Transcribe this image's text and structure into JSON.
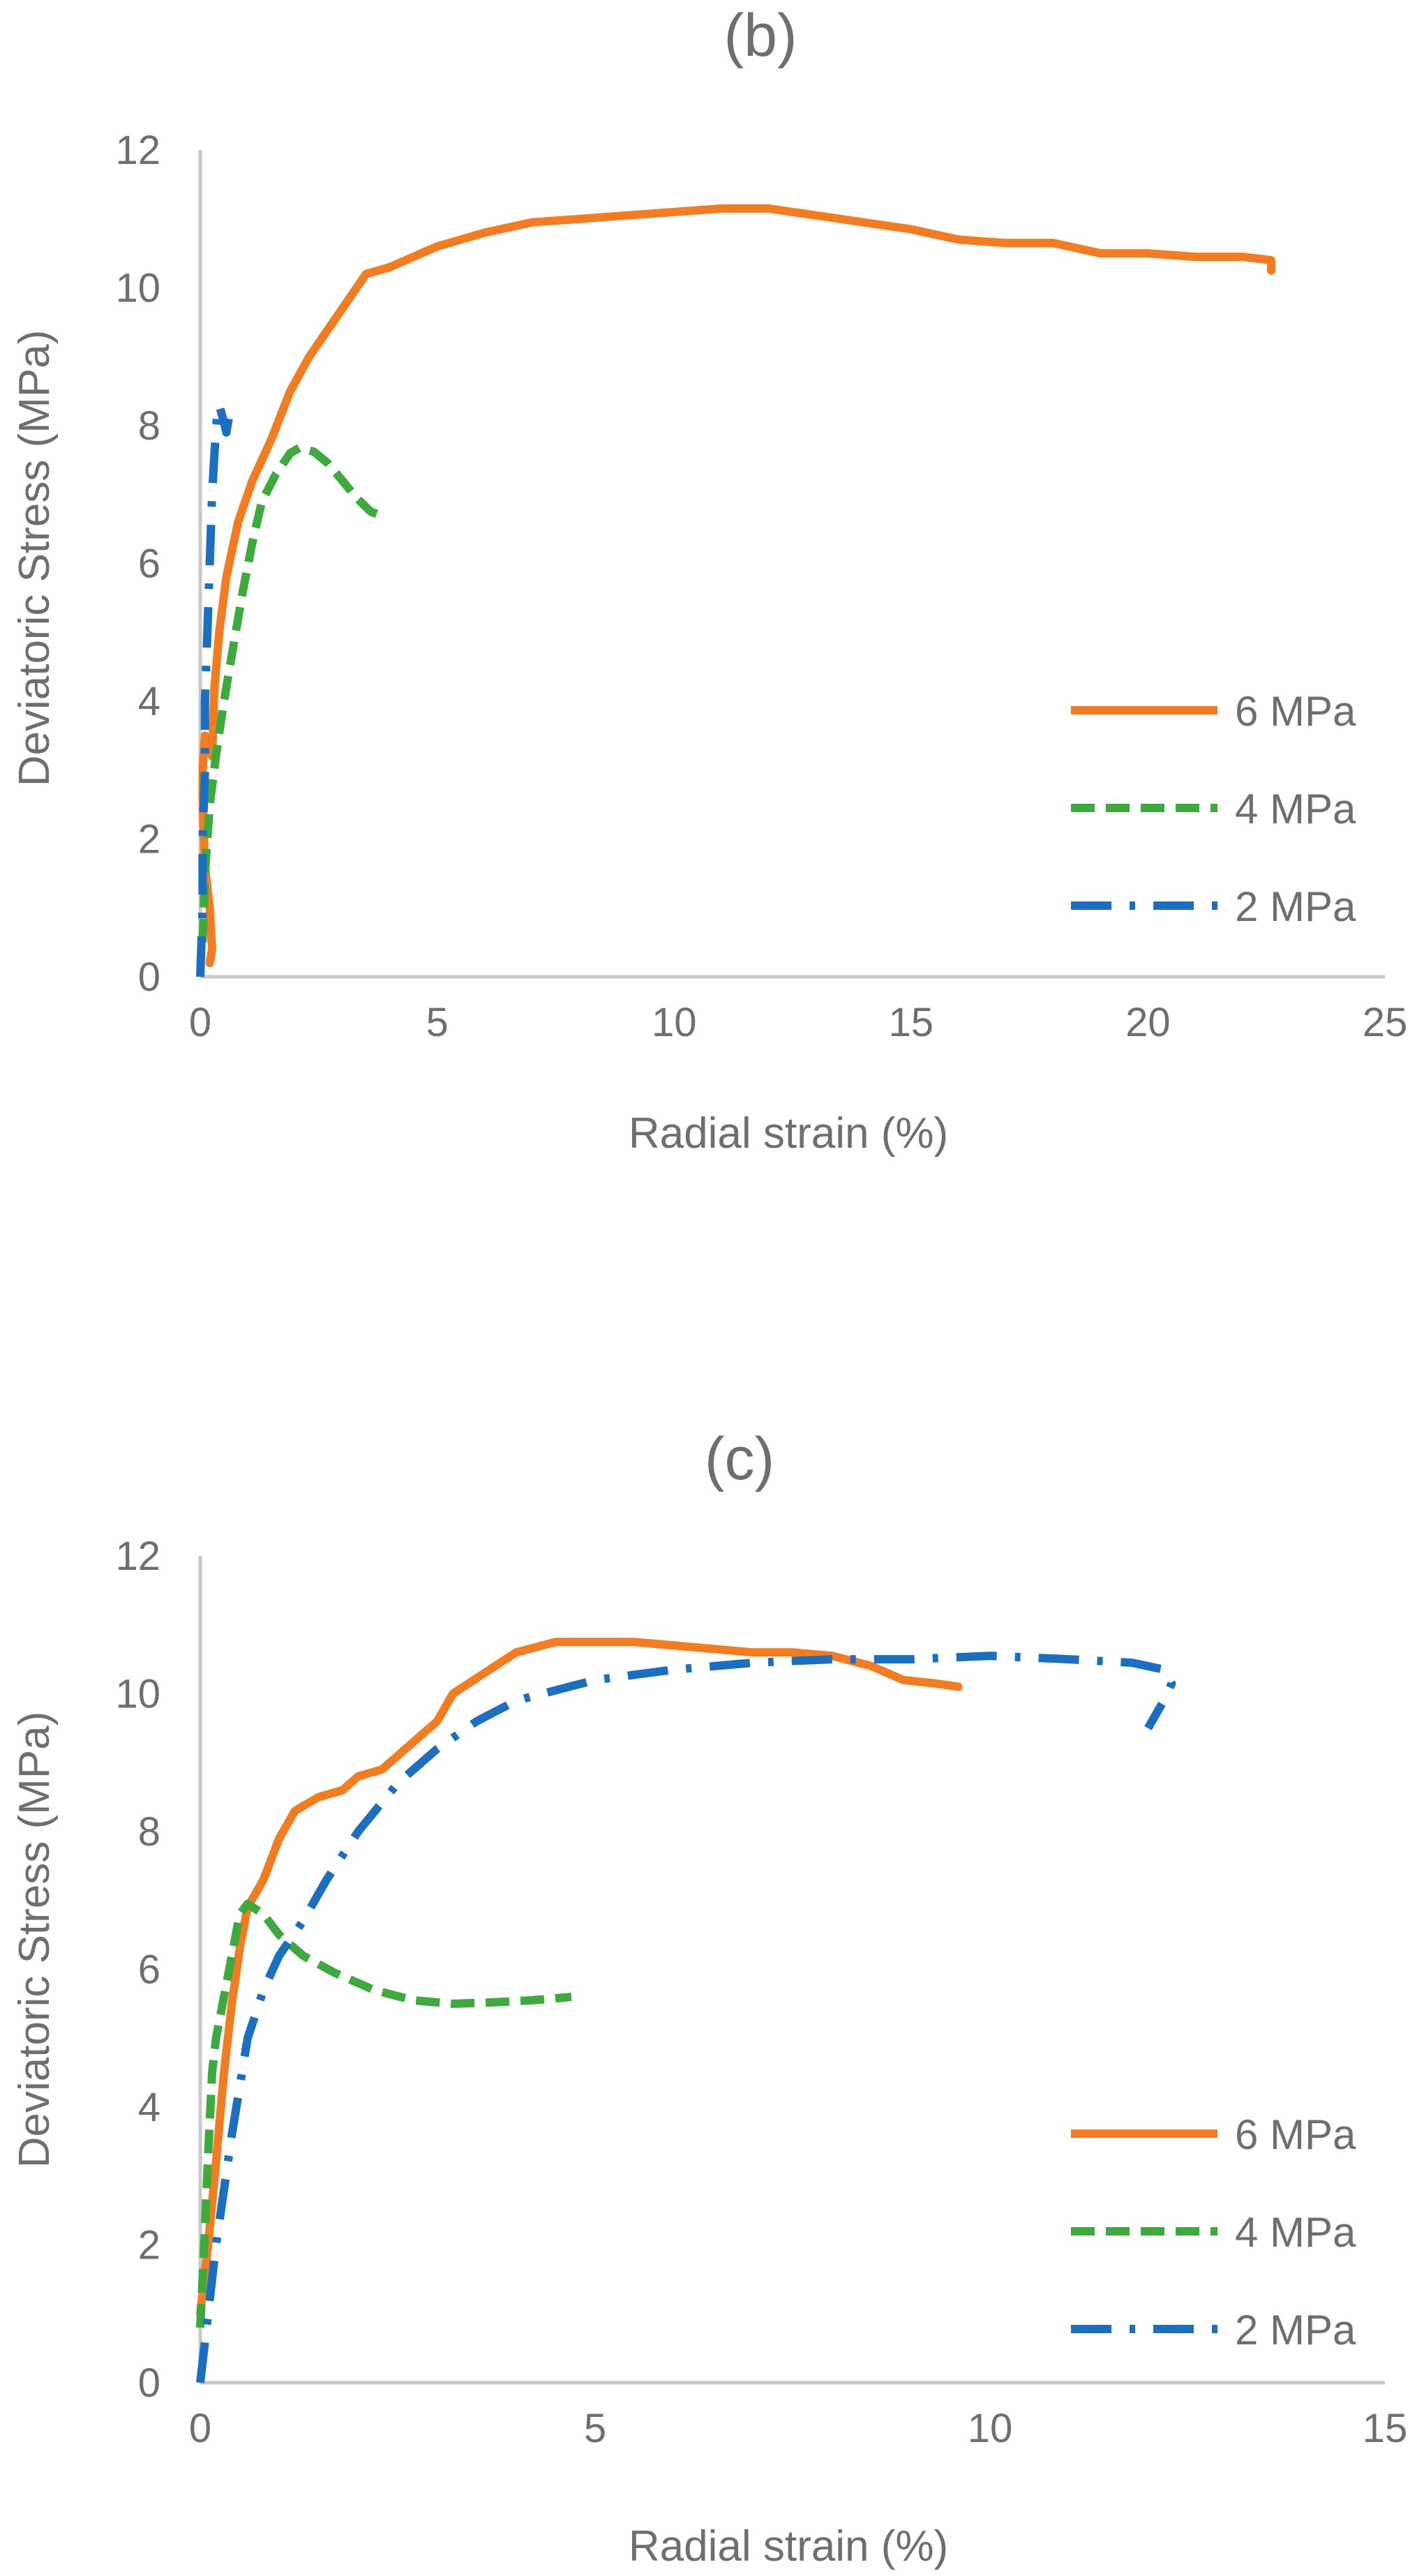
{
  "colors": {
    "six_mpa": "#F47C20",
    "four_mpa": "#3DAA3D",
    "two_mpa": "#1B6FC2",
    "axis_text": "#6E6E6E",
    "axis_line": "#C8C8C8"
  },
  "chart_data": [
    {
      "id": "b",
      "type": "line",
      "title": "(b)",
      "xlabel": "Radial strain (%)",
      "ylabel": "Deviatoric Stress (MPa)",
      "xlim": [
        0,
        25
      ],
      "ylim": [
        0,
        12
      ],
      "xticks": [
        0,
        5,
        10,
        15,
        20,
        25
      ],
      "yticks": [
        0,
        2,
        4,
        6,
        8,
        10,
        12
      ],
      "grid": false,
      "legend": "right-middle",
      "series": [
        {
          "name": "6 MPa",
          "style": "solid",
          "points": [
            [
              0.2,
              0.2
            ],
            [
              0.25,
              0.4
            ],
            [
              0.2,
              1.0
            ],
            [
              0.1,
              1.6
            ],
            [
              0.05,
              2.6
            ],
            [
              0.05,
              3.0
            ],
            [
              0.1,
              3.5
            ],
            [
              0.2,
              3.4
            ],
            [
              0.25,
              3.2
            ],
            [
              0.3,
              4.2
            ],
            [
              0.4,
              5.0
            ],
            [
              0.55,
              5.8
            ],
            [
              0.8,
              6.6
            ],
            [
              1.1,
              7.2
            ],
            [
              1.5,
              7.8
            ],
            [
              1.9,
              8.5
            ],
            [
              2.3,
              9.0
            ],
            [
              2.7,
              9.4
            ],
            [
              3.1,
              9.8
            ],
            [
              3.5,
              10.2
            ],
            [
              4.0,
              10.3
            ],
            [
              5.0,
              10.6
            ],
            [
              6.0,
              10.8
            ],
            [
              7.0,
              10.95
            ],
            [
              8.0,
              11.0
            ],
            [
              9.0,
              11.05
            ],
            [
              10.0,
              11.1
            ],
            [
              11.0,
              11.15
            ],
            [
              12.0,
              11.15
            ],
            [
              13.0,
              11.05
            ],
            [
              14.0,
              10.95
            ],
            [
              15.0,
              10.85
            ],
            [
              16.0,
              10.7
            ],
            [
              17.0,
              10.65
            ],
            [
              18.0,
              10.65
            ],
            [
              19.0,
              10.5
            ],
            [
              20.0,
              10.5
            ],
            [
              21.0,
              10.45
            ],
            [
              22.0,
              10.45
            ],
            [
              22.6,
              10.4
            ],
            [
              22.6,
              10.25
            ]
          ]
        },
        {
          "name": "4 MPa",
          "style": "dashed",
          "points": [
            [
              0.05,
              0.5
            ],
            [
              0.1,
              1.5
            ],
            [
              0.2,
              2.5
            ],
            [
              0.35,
              3.3
            ],
            [
              0.5,
              4.0
            ],
            [
              0.7,
              4.8
            ],
            [
              0.9,
              5.6
            ],
            [
              1.1,
              6.3
            ],
            [
              1.3,
              6.9
            ],
            [
              1.6,
              7.3
            ],
            [
              1.9,
              7.6
            ],
            [
              2.1,
              7.68
            ],
            [
              2.4,
              7.62
            ],
            [
              2.7,
              7.45
            ],
            [
              3.0,
              7.2
            ],
            [
              3.3,
              6.95
            ],
            [
              3.6,
              6.75
            ],
            [
              3.8,
              6.7
            ]
          ]
        },
        {
          "name": "2 MPa",
          "style": "dashdot",
          "points": [
            [
              0.0,
              0.0
            ],
            [
              0.05,
              1.0
            ],
            [
              0.05,
              2.0
            ],
            [
              0.1,
              3.0
            ],
            [
              0.1,
              4.0
            ],
            [
              0.15,
              5.0
            ],
            [
              0.2,
              6.0
            ],
            [
              0.25,
              7.0
            ],
            [
              0.3,
              7.6
            ],
            [
              0.35,
              8.1
            ],
            [
              0.4,
              8.3
            ],
            [
              0.5,
              8.05
            ],
            [
              0.55,
              7.9
            ],
            [
              0.6,
              8.1
            ]
          ]
        }
      ]
    },
    {
      "id": "c",
      "type": "line",
      "title": "(c)",
      "xlabel": "Radial strain (%)",
      "ylabel": "Deviatoric Stress (MPa)",
      "xlim": [
        0,
        15
      ],
      "ylim": [
        0,
        12
      ],
      "xticks": [
        0,
        5,
        10,
        15
      ],
      "yticks": [
        0,
        2,
        4,
        6,
        8,
        10,
        12
      ],
      "grid": false,
      "legend": "right-bottom",
      "series": [
        {
          "name": "6 MPa",
          "style": "solid",
          "points": [
            [
              0.0,
              1.0
            ],
            [
              0.1,
              2.0
            ],
            [
              0.2,
              3.2
            ],
            [
              0.3,
              4.5
            ],
            [
              0.4,
              5.5
            ],
            [
              0.5,
              6.3
            ],
            [
              0.6,
              6.9
            ],
            [
              0.8,
              7.3
            ],
            [
              1.0,
              7.9
            ],
            [
              1.2,
              8.3
            ],
            [
              1.5,
              8.5
            ],
            [
              1.8,
              8.6
            ],
            [
              2.0,
              8.8
            ],
            [
              2.3,
              8.9
            ],
            [
              2.6,
              9.2
            ],
            [
              3.0,
              9.6
            ],
            [
              3.2,
              10.0
            ],
            [
              3.6,
              10.3
            ],
            [
              4.0,
              10.6
            ],
            [
              4.5,
              10.75
            ],
            [
              5.0,
              10.75
            ],
            [
              5.5,
              10.75
            ],
            [
              6.0,
              10.7
            ],
            [
              6.5,
              10.65
            ],
            [
              7.0,
              10.6
            ],
            [
              7.5,
              10.6
            ],
            [
              8.0,
              10.55
            ],
            [
              8.5,
              10.4
            ],
            [
              8.9,
              10.2
            ],
            [
              9.3,
              10.15
            ],
            [
              9.6,
              10.1
            ]
          ]
        },
        {
          "name": "4 MPa",
          "style": "dashed",
          "points": [
            [
              0.0,
              0.8
            ],
            [
              0.05,
              2.0
            ],
            [
              0.1,
              3.3
            ],
            [
              0.15,
              4.5
            ],
            [
              0.2,
              5.0
            ],
            [
              0.3,
              5.6
            ],
            [
              0.4,
              6.2
            ],
            [
              0.5,
              6.8
            ],
            [
              0.6,
              6.95
            ],
            [
              0.8,
              6.8
            ],
            [
              1.0,
              6.5
            ],
            [
              1.3,
              6.2
            ],
            [
              1.7,
              5.95
            ],
            [
              2.2,
              5.7
            ],
            [
              2.7,
              5.55
            ],
            [
              3.2,
              5.5
            ],
            [
              3.7,
              5.52
            ],
            [
              4.2,
              5.55
            ],
            [
              4.7,
              5.6
            ]
          ]
        },
        {
          "name": "2 MPa",
          "style": "dashdot",
          "points": [
            [
              0.0,
              0.0
            ],
            [
              0.1,
              1.0
            ],
            [
              0.2,
              2.0
            ],
            [
              0.3,
              2.8
            ],
            [
              0.4,
              3.6
            ],
            [
              0.5,
              4.3
            ],
            [
              0.6,
              5.0
            ],
            [
              0.8,
              5.7
            ],
            [
              1.0,
              6.2
            ],
            [
              1.3,
              6.7
            ],
            [
              1.6,
              7.3
            ],
            [
              2.0,
              8.0
            ],
            [
              2.5,
              8.7
            ],
            [
              3.0,
              9.2
            ],
            [
              3.5,
              9.6
            ],
            [
              4.0,
              9.9
            ],
            [
              5.0,
              10.2
            ],
            [
              6.0,
              10.35
            ],
            [
              7.0,
              10.45
            ],
            [
              8.0,
              10.5
            ],
            [
              9.0,
              10.5
            ],
            [
              10.0,
              10.55
            ],
            [
              11.0,
              10.5
            ],
            [
              11.8,
              10.45
            ],
            [
              12.2,
              10.35
            ],
            [
              12.3,
              10.15
            ],
            [
              12.2,
              9.9
            ],
            [
              12.1,
              9.7
            ],
            [
              12.0,
              9.5
            ]
          ]
        }
      ]
    }
  ]
}
